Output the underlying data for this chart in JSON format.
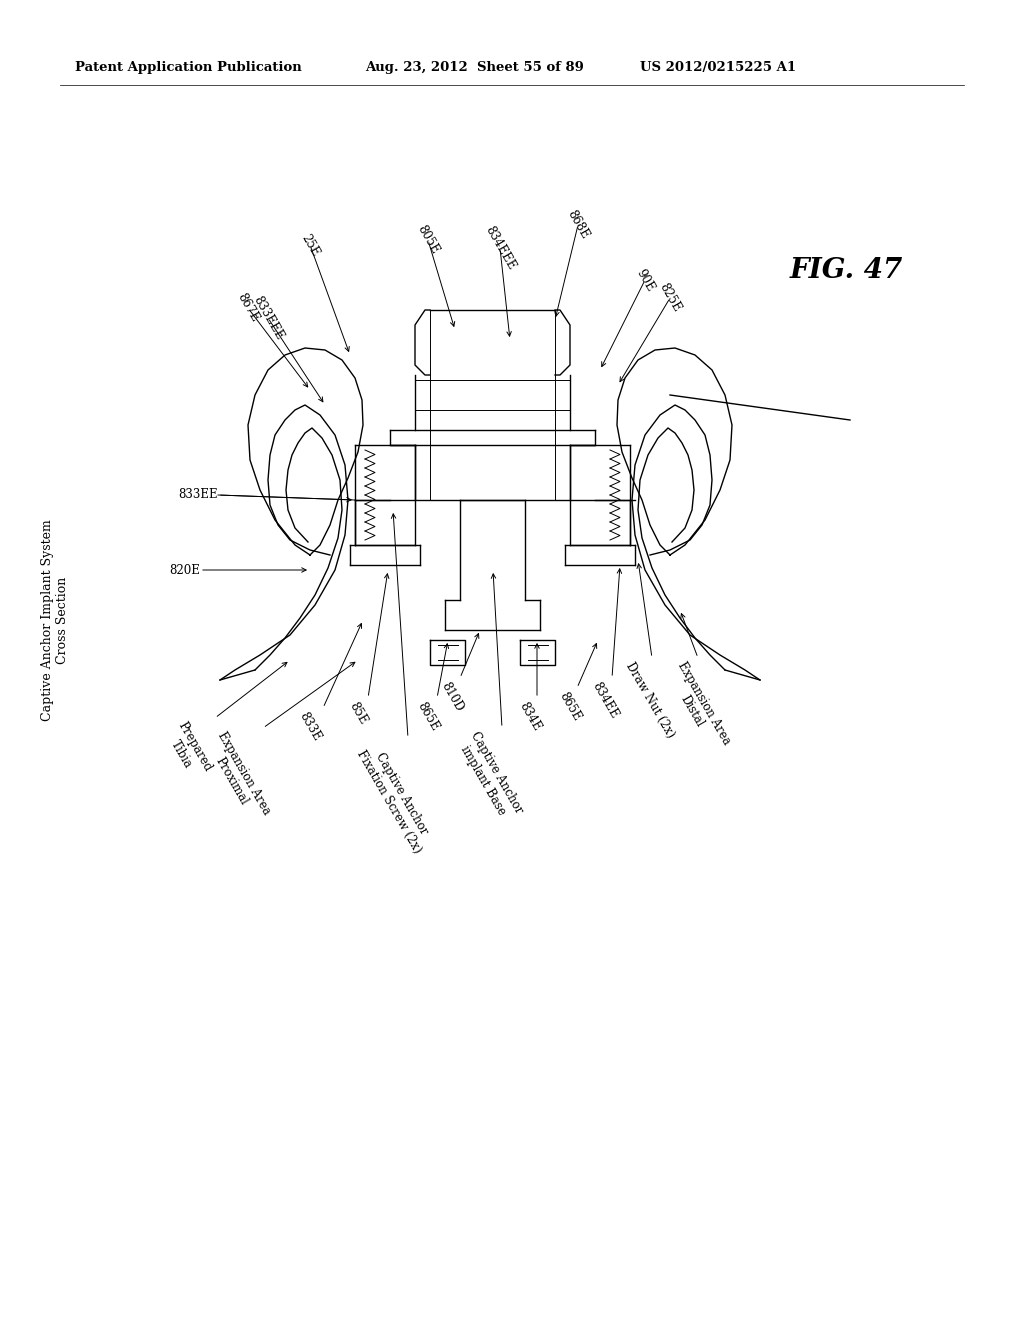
{
  "background_color": "#ffffff",
  "header_left": "Patent Application Publication",
  "header_center": "Aug. 23, 2012  Sheet 55 of 89",
  "header_right": "US 2012/0215225 A1",
  "fig_label": "FIG. 47",
  "side_title_line1": "Captive Anchor Implant System",
  "side_title_line2": "Cross Section",
  "lw": 1.0,
  "fontsize_label": 8.5,
  "fontsize_header": 9.5,
  "fontsize_fig": 20
}
